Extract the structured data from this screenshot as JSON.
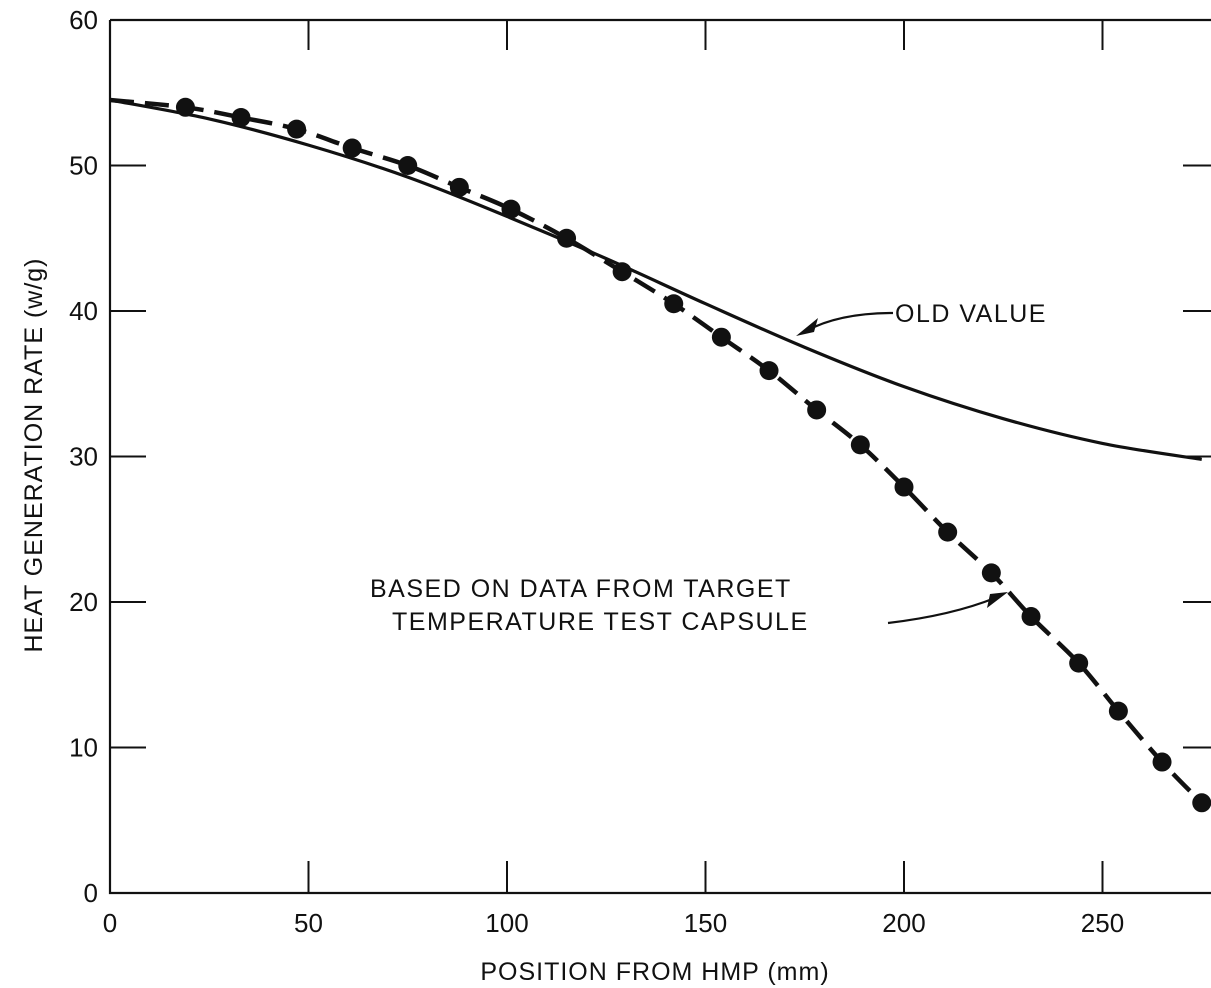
{
  "chart_data": {
    "type": "line",
    "title": "",
    "xlabel": "POSITION FROM HMP (mm)",
    "ylabel": "HEAT GENERATION RATE (w/g)",
    "xlim": [
      0,
      275
    ],
    "ylim": [
      0,
      60
    ],
    "x_ticks": [
      0,
      50,
      100,
      150,
      200,
      250
    ],
    "y_ticks": [
      0,
      10,
      20,
      30,
      40,
      50,
      60
    ],
    "grid": false,
    "series": [
      {
        "name": "OLD VALUE",
        "style": "solid",
        "x": [
          0,
          25,
          50,
          75,
          100,
          125,
          150,
          175,
          200,
          225,
          250,
          275
        ],
        "y": [
          54.5,
          53.2,
          51.4,
          49.2,
          46.5,
          43.6,
          40.5,
          37.5,
          34.8,
          32.6,
          30.9,
          29.8
        ]
      },
      {
        "name": "BASED ON DATA FROM TARGET TEMPERATURE TEST CAPSULE",
        "style": "dashed-with-points",
        "x": [
          19,
          33,
          47,
          61,
          75,
          88,
          101,
          115,
          129,
          142,
          154,
          166,
          178,
          189,
          200,
          211,
          222,
          232,
          244,
          254,
          265,
          275
        ],
        "y": [
          54.0,
          53.3,
          52.5,
          51.2,
          50.0,
          48.5,
          47.0,
          45.0,
          42.7,
          40.5,
          38.2,
          35.9,
          33.2,
          30.8,
          27.9,
          24.8,
          22.0,
          19.0,
          15.8,
          12.5,
          9.0,
          6.2
        ]
      }
    ],
    "annotations": [
      {
        "text": "OLD VALUE"
      },
      {
        "text": "BASED ON DATA FROM TARGET"
      },
      {
        "text": "TEMPERATURE TEST CAPSULE"
      }
    ]
  }
}
